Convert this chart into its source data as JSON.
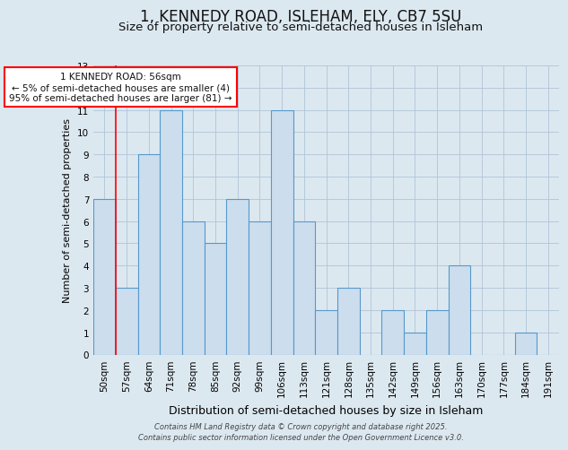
{
  "title_line1": "1, KENNEDY ROAD, ISLEHAM, ELY, CB7 5SU",
  "title_line2": "Size of property relative to semi-detached houses in Isleham",
  "xlabel": "Distribution of semi-detached houses by size in Isleham",
  "ylabel": "Number of semi-detached properties",
  "categories": [
    "50sqm",
    "57sqm",
    "64sqm",
    "71sqm",
    "78sqm",
    "85sqm",
    "92sqm",
    "99sqm",
    "106sqm",
    "113sqm",
    "121sqm",
    "128sqm",
    "135sqm",
    "142sqm",
    "149sqm",
    "156sqm",
    "163sqm",
    "170sqm",
    "177sqm",
    "184sqm",
    "191sqm"
  ],
  "values": [
    7,
    3,
    9,
    11,
    6,
    5,
    7,
    6,
    11,
    6,
    2,
    3,
    0,
    2,
    1,
    2,
    4,
    0,
    0,
    1,
    0
  ],
  "bar_color": "#ccdded",
  "bar_edge_color": "#5599cc",
  "ylim": [
    0,
    13
  ],
  "yticks": [
    0,
    1,
    2,
    3,
    4,
    5,
    6,
    7,
    8,
    9,
    10,
    11,
    12,
    13
  ],
  "annotation_title": "1 KENNEDY ROAD: 56sqm",
  "annotation_line1": "← 5% of semi-detached houses are smaller (4)",
  "annotation_line2": "95% of semi-detached houses are larger (81) →",
  "footer_line1": "Contains HM Land Registry data © Crown copyright and database right 2025.",
  "footer_line2": "Contains public sector information licensed under the Open Government Licence v3.0.",
  "background_color": "#dce8f0",
  "plot_bg_color": "#dce8f0",
  "grid_color": "#b0c4d8",
  "title_fontsize": 12,
  "subtitle_fontsize": 9.5,
  "ylabel_fontsize": 8,
  "xlabel_fontsize": 9,
  "tick_fontsize": 7.5,
  "annotation_fontsize": 7.5,
  "footer_fontsize": 6
}
